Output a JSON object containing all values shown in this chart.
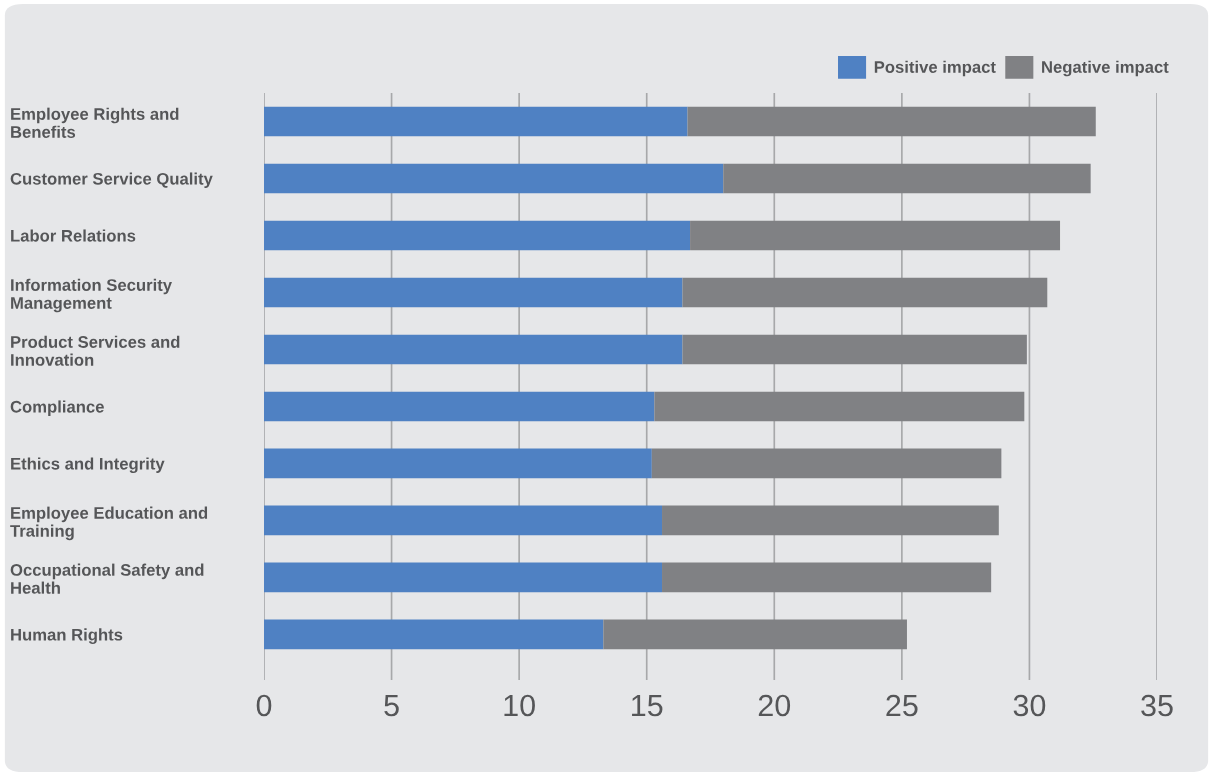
{
  "chart_data": {
    "type": "bar",
    "orientation": "horizontal",
    "stacked": true,
    "categories": [
      "Employee Rights and\nBenefits",
      "Customer Service Quality",
      "Labor Relations",
      "Information Security\nManagement",
      "Product Services and\nInnovation",
      "Compliance",
      "Ethics and Integrity",
      "Employee Education and\nTraining",
      "Occupational Safety and\nHealth",
      "Human Rights"
    ],
    "series": [
      {
        "name": "Positive impact",
        "color": "#4f81c3",
        "values": [
          16.6,
          18.0,
          16.7,
          16.4,
          16.4,
          15.3,
          15.2,
          15.6,
          15.6,
          13.3
        ]
      },
      {
        "name": "Negative impact",
        "color": "#808184",
        "values": [
          16.0,
          14.4,
          14.5,
          14.3,
          13.5,
          14.5,
          13.7,
          13.2,
          12.9,
          11.9
        ]
      }
    ],
    "xlim": [
      0,
      35
    ],
    "xticks": [
      0,
      5,
      10,
      15,
      20,
      25,
      30,
      35
    ],
    "grid": "x",
    "legend": "top right"
  }
}
